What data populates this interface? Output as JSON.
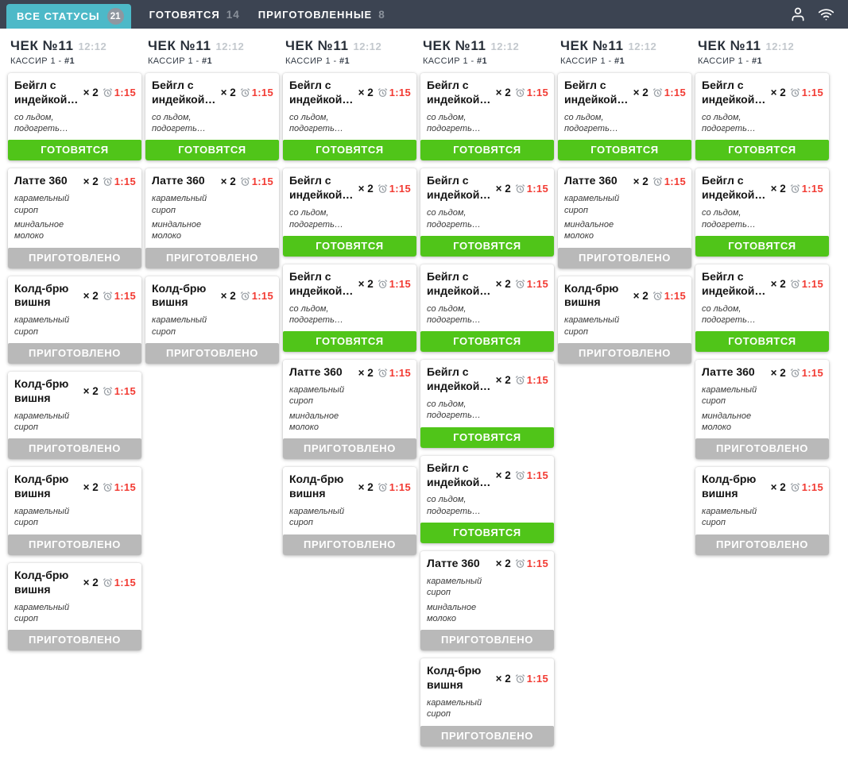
{
  "colors": {
    "header_bg": "#3c4452",
    "tab_active_bg": "#4db9c8",
    "badge_bg": "#8f97a0",
    "cooking_green": "#50c519",
    "done_gray": "#b9b9b9",
    "timer_red": "#f23b33"
  },
  "icons": {
    "user": "user-icon",
    "wifi": "wifi-icon",
    "timer": "alarm-clock-icon"
  },
  "header": {
    "tabs": [
      {
        "label": "ВСЕ СТАТУСЫ",
        "count": "21",
        "active": true
      },
      {
        "label": "ГОТОВЯТСЯ",
        "count": "14",
        "active": false
      },
      {
        "label": "ПРИГОТОВЛЕННЫЕ",
        "count": "8",
        "active": false
      }
    ]
  },
  "board": {
    "orders": [
      {
        "check_label": "ЧЕК №11",
        "check_time": "12:12",
        "cashier_label": "КАССИР 1 - ",
        "cashier_tag": "#1",
        "items": [
          {
            "name": "Бейгл с индейкой…",
            "qty": "× 2",
            "timer": "1:15",
            "modifiers": [
              "со льдом, подогреть…"
            ],
            "status": "cooking",
            "status_label": "ГОТОВЯТСЯ"
          },
          {
            "name": "Латте 360",
            "qty": "× 2",
            "timer": "1:15",
            "modifiers": [
              "карамельный сироп",
              "миндальное молоко"
            ],
            "status": "done",
            "status_label": "ПРИГОТОВЛЕНО"
          },
          {
            "name": "Колд-брю вишня",
            "qty": "× 2",
            "timer": "1:15",
            "modifiers": [
              "карамельный сироп"
            ],
            "status": "done",
            "status_label": "ПРИГОТОВЛЕНО"
          },
          {
            "name": "Колд-брю вишня",
            "qty": "× 2",
            "timer": "1:15",
            "modifiers": [
              "карамельный сироп"
            ],
            "status": "done",
            "status_label": "ПРИГОТОВЛЕНО"
          },
          {
            "name": "Колд-брю вишня",
            "qty": "× 2",
            "timer": "1:15",
            "modifiers": [
              "карамельный сироп"
            ],
            "status": "done",
            "status_label": "ПРИГОТОВЛЕНО"
          },
          {
            "name": "Колд-брю вишня",
            "qty": "× 2",
            "timer": "1:15",
            "modifiers": [
              "карамельный сироп"
            ],
            "status": "done",
            "status_label": "ПРИГОТОВЛЕНО"
          }
        ]
      },
      {
        "check_label": "ЧЕК №11",
        "check_time": "12:12",
        "cashier_label": "КАССИР 1 - ",
        "cashier_tag": "#1",
        "items": [
          {
            "name": "Бейгл с индейкой…",
            "qty": "× 2",
            "timer": "1:15",
            "modifiers": [
              "со льдом, подогреть…"
            ],
            "status": "cooking",
            "status_label": "ГОТОВЯТСЯ"
          },
          {
            "name": "Латте 360",
            "qty": "× 2",
            "timer": "1:15",
            "modifiers": [
              "карамельный сироп",
              "миндальное молоко"
            ],
            "status": "done",
            "status_label": "ПРИГОТОВЛЕНО"
          },
          {
            "name": "Колд-брю вишня",
            "qty": "× 2",
            "timer": "1:15",
            "modifiers": [
              "карамельный сироп"
            ],
            "status": "done",
            "status_label": "ПРИГОТОВЛЕНО"
          }
        ]
      },
      {
        "check_label": "ЧЕК №11",
        "check_time": "12:12",
        "cashier_label": "КАССИР 1 - ",
        "cashier_tag": "#1",
        "items": [
          {
            "name": "Бейгл с индейкой…",
            "qty": "× 2",
            "timer": "1:15",
            "modifiers": [
              "со льдом, подогреть…"
            ],
            "status": "cooking",
            "status_label": "ГОТОВЯТСЯ"
          },
          {
            "name": "Бейгл с индейкой…",
            "qty": "× 2",
            "timer": "1:15",
            "modifiers": [
              "со льдом, подогреть…"
            ],
            "status": "cooking",
            "status_label": "ГОТОВЯТСЯ"
          },
          {
            "name": "Бейгл с индейкой…",
            "qty": "× 2",
            "timer": "1:15",
            "modifiers": [
              "со льдом, подогреть…"
            ],
            "status": "cooking",
            "status_label": "ГОТОВЯТСЯ"
          },
          {
            "name": "Латте 360",
            "qty": "× 2",
            "timer": "1:15",
            "modifiers": [
              "карамельный сироп",
              "миндальное молоко"
            ],
            "status": "done",
            "status_label": "ПРИГОТОВЛЕНО"
          },
          {
            "name": "Колд-брю вишня",
            "qty": "× 2",
            "timer": "1:15",
            "modifiers": [
              "карамельный сироп"
            ],
            "status": "done",
            "status_label": "ПРИГОТОВЛЕНО"
          }
        ]
      },
      {
        "check_label": "ЧЕК №11",
        "check_time": "12:12",
        "cashier_label": "КАССИР 1 - ",
        "cashier_tag": "#1",
        "items": [
          {
            "name": "Бейгл с индейкой…",
            "qty": "× 2",
            "timer": "1:15",
            "modifiers": [
              "со льдом, подогреть…"
            ],
            "status": "cooking",
            "status_label": "ГОТОВЯТСЯ"
          },
          {
            "name": "Бейгл с индейкой…",
            "qty": "× 2",
            "timer": "1:15",
            "modifiers": [
              "со льдом, подогреть…"
            ],
            "status": "cooking",
            "status_label": "ГОТОВЯТСЯ"
          },
          {
            "name": "Бейгл с индейкой…",
            "qty": "× 2",
            "timer": "1:15",
            "modifiers": [
              "со льдом, подогреть…"
            ],
            "status": "cooking",
            "status_label": "ГОТОВЯТСЯ"
          },
          {
            "name": "Бейгл с индейкой…",
            "qty": "× 2",
            "timer": "1:15",
            "modifiers": [
              "со льдом, подогреть…"
            ],
            "status": "cooking",
            "status_label": "ГОТОВЯТСЯ"
          },
          {
            "name": "Бейгл с индейкой…",
            "qty": "× 2",
            "timer": "1:15",
            "modifiers": [
              "со льдом, подогреть…"
            ],
            "status": "cooking",
            "status_label": "ГОТОВЯТСЯ"
          },
          {
            "name": "Латте 360",
            "qty": "× 2",
            "timer": "1:15",
            "modifiers": [
              "карамельный сироп",
              "миндальное молоко"
            ],
            "status": "done",
            "status_label": "ПРИГОТОВЛЕНО"
          },
          {
            "name": "Колд-брю вишня",
            "qty": "× 2",
            "timer": "1:15",
            "modifiers": [
              "карамельный сироп"
            ],
            "status": "done",
            "status_label": "ПРИГОТОВЛЕНО"
          }
        ]
      },
      {
        "check_label": "ЧЕК №11",
        "check_time": "12:12",
        "cashier_label": "КАССИР 1 - ",
        "cashier_tag": "#1",
        "items": [
          {
            "name": "Бейгл с индейкой…",
            "qty": "× 2",
            "timer": "1:15",
            "modifiers": [
              "со льдом, подогреть…"
            ],
            "status": "cooking",
            "status_label": "ГОТОВЯТСЯ"
          },
          {
            "name": "Латте 360",
            "qty": "× 2",
            "timer": "1:15",
            "modifiers": [
              "карамельный сироп",
              "миндальное молоко"
            ],
            "status": "done",
            "status_label": "ПРИГОТОВЛЕНО"
          },
          {
            "name": "Колд-брю вишня",
            "qty": "× 2",
            "timer": "1:15",
            "modifiers": [
              "карамельный сироп"
            ],
            "status": "done",
            "status_label": "ПРИГОТОВЛЕНО"
          }
        ]
      },
      {
        "check_label": "ЧЕК №11",
        "check_time": "12:12",
        "cashier_label": "КАССИР 1 - ",
        "cashier_tag": "#1",
        "items": [
          {
            "name": "Бейгл с индейкой…",
            "qty": "× 2",
            "timer": "1:15",
            "modifiers": [
              "со льдом, подогреть…"
            ],
            "status": "cooking",
            "status_label": "ГОТОВЯТСЯ"
          },
          {
            "name": "Бейгл с индейкой…",
            "qty": "× 2",
            "timer": "1:15",
            "modifiers": [
              "со льдом, подогреть…"
            ],
            "status": "cooking",
            "status_label": "ГОТОВЯТСЯ"
          },
          {
            "name": "Бейгл с индейкой…",
            "qty": "× 2",
            "timer": "1:15",
            "modifiers": [
              "со льдом, подогреть…"
            ],
            "status": "cooking",
            "status_label": "ГОТОВЯТСЯ"
          },
          {
            "name": "Латте 360",
            "qty": "× 2",
            "timer": "1:15",
            "modifiers": [
              "карамельный сироп",
              "миндальное молоко"
            ],
            "status": "done",
            "status_label": "ПРИГОТОВЛЕНО"
          },
          {
            "name": "Колд-брю вишня",
            "qty": "× 2",
            "timer": "1:15",
            "modifiers": [
              "карамельный сироп"
            ],
            "status": "done",
            "status_label": "ПРИГОТОВЛЕНО"
          }
        ]
      }
    ]
  }
}
